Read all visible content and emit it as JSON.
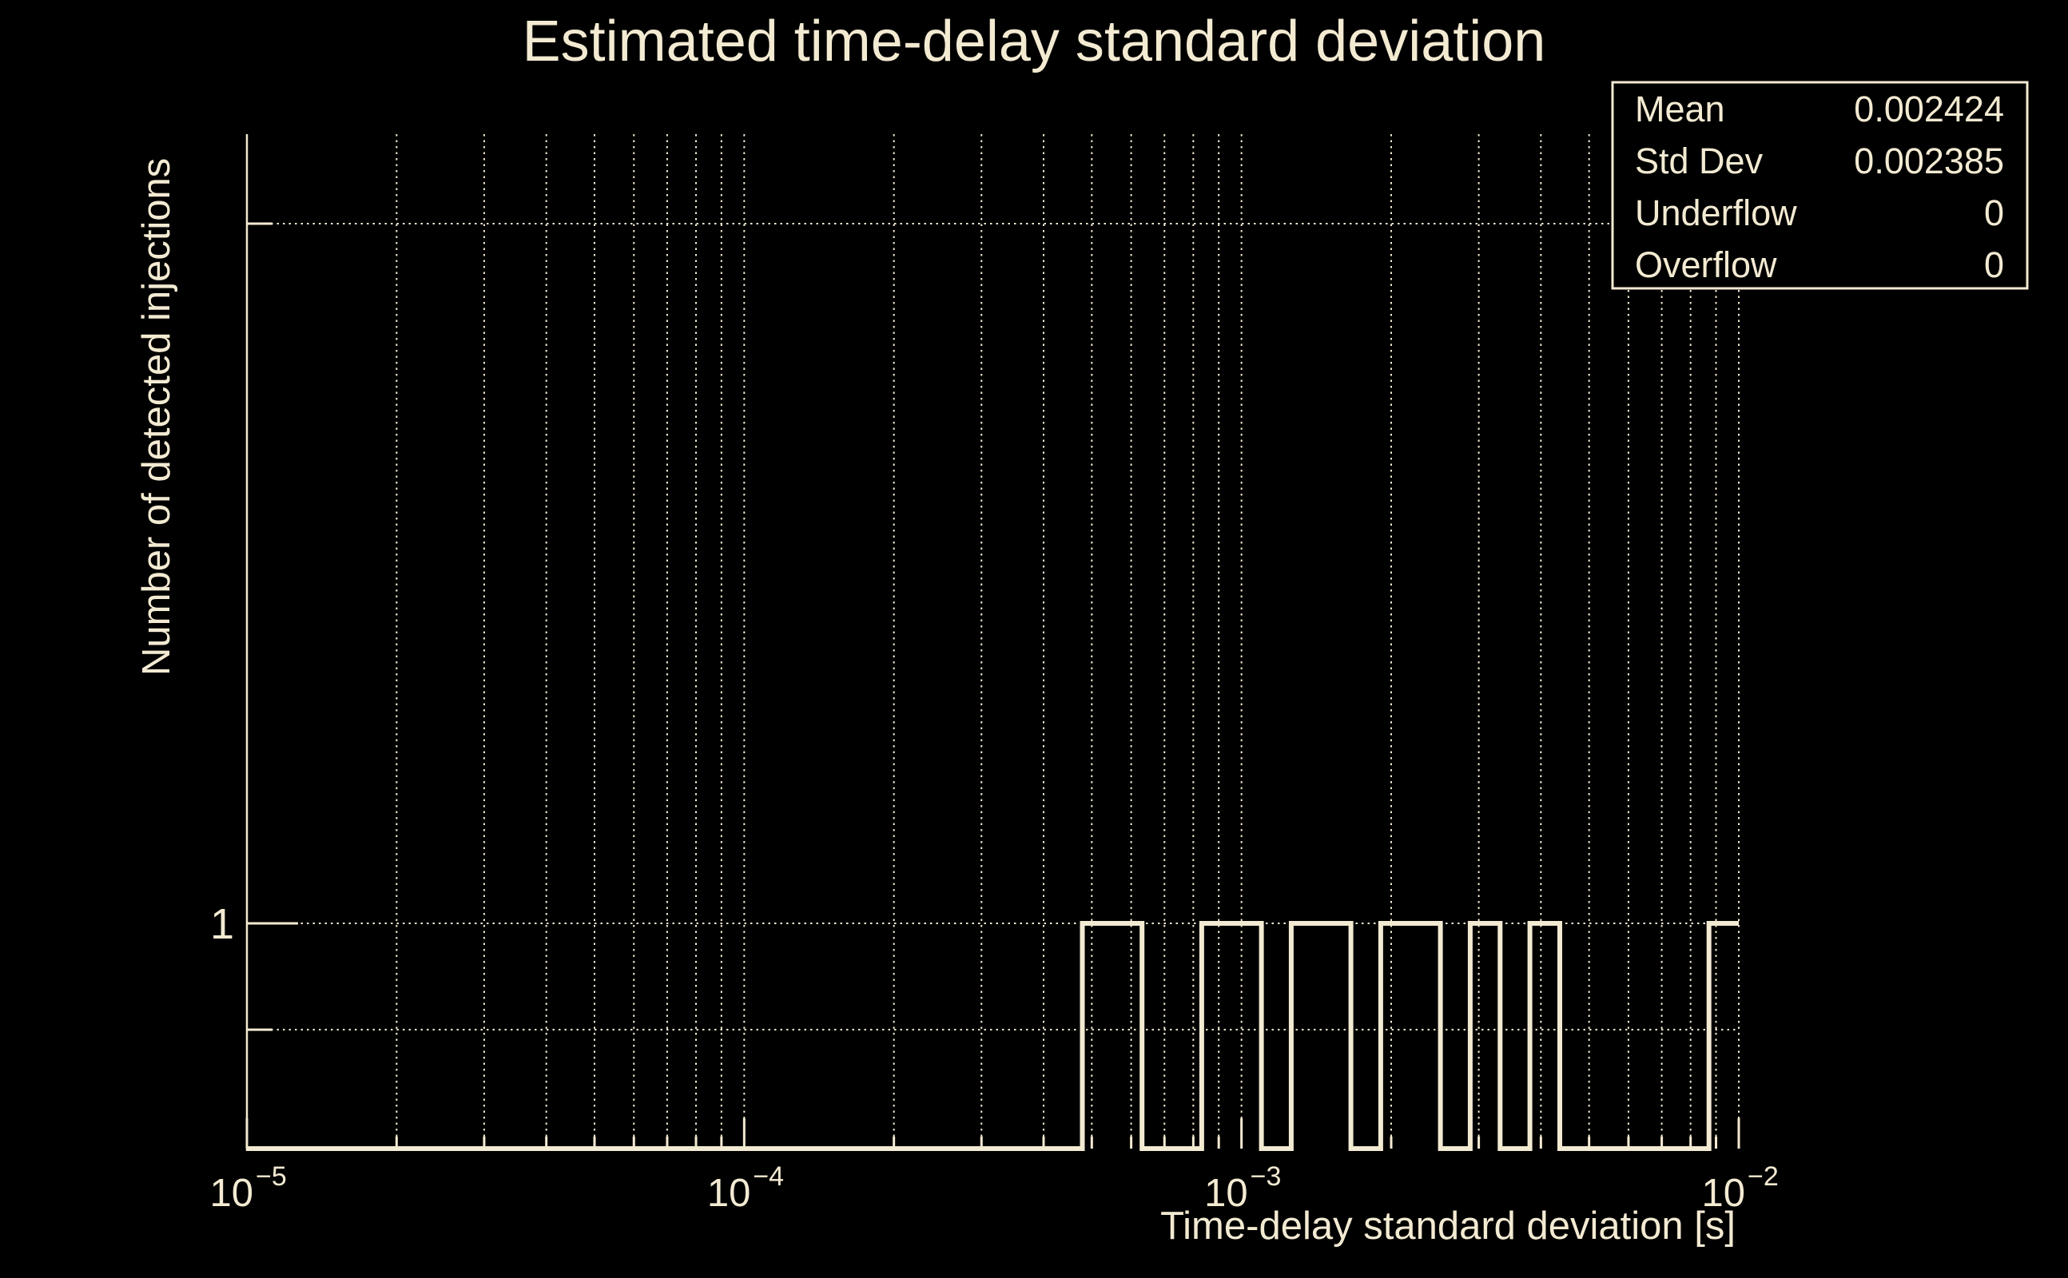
{
  "page": {
    "title": "Estimated time-delay standard deviation"
  },
  "colors": {
    "background": "#000000",
    "foreground": "#F3EAD2"
  },
  "stats_box": {
    "rows": [
      {
        "label": "Mean",
        "value": "0.002424"
      },
      {
        "label": "Std Dev",
        "value": "0.002385"
      },
      {
        "label": "Underflow",
        "value": "0"
      },
      {
        "label": "Overflow",
        "value": "0"
      }
    ]
  },
  "axes": {
    "x": {
      "title": "Time-delay standard deviation [s]",
      "scale": "log",
      "min": 1e-05,
      "max": 0.01,
      "ticks": [
        {
          "base": "10",
          "exp": "−5",
          "log": -5
        },
        {
          "base": "10",
          "exp": "−4",
          "log": -4
        },
        {
          "base": "10",
          "exp": "−3",
          "log": -3
        },
        {
          "base": "10",
          "exp": "−2",
          "log": -2
        }
      ],
      "minor_gridlines": "2-9 of each decade, dotted",
      "grid": true
    },
    "y": {
      "title": "Number of detected injections",
      "scale": "log",
      "range": [
        0.8,
        2.185
      ],
      "major_label": "1",
      "major_value": 1,
      "minor_gridline_values": [
        2,
        0.9
      ],
      "grid": true
    }
  },
  "chart_data": {
    "type": "histogram",
    "title": "Estimated time-delay standard deviation",
    "xlabel": "Time-delay standard deviation [s]",
    "ylabel": "Number of detected injections",
    "x_scale": "log",
    "y_scale": "log",
    "x_range": [
      1e-05,
      0.01
    ],
    "y_range": [
      0.8,
      2.185
    ],
    "n_bins": 50,
    "filled_bins": [
      28,
      29,
      32,
      33,
      35,
      36,
      38,
      39,
      41,
      43,
      49
    ],
    "bin_content": 1,
    "total_entries": 11,
    "y_gridline_values": [
      2,
      1,
      0.9
    ],
    "bars_in_seconds": [
      {
        "from": 0.000479,
        "to": 0.000631,
        "count": 1
      },
      {
        "from": 0.000832,
        "to": 0.001096,
        "count": 1
      },
      {
        "from": 0.001259,
        "to": 0.00166,
        "count": 1
      },
      {
        "from": 0.001905,
        "to": 0.002512,
        "count": 1
      },
      {
        "from": 0.002884,
        "to": 0.003311,
        "count": 1
      },
      {
        "from": 0.003802,
        "to": 0.004365,
        "count": 1
      },
      {
        "from": 0.00871,
        "to": 0.01,
        "count": 1
      }
    ]
  }
}
